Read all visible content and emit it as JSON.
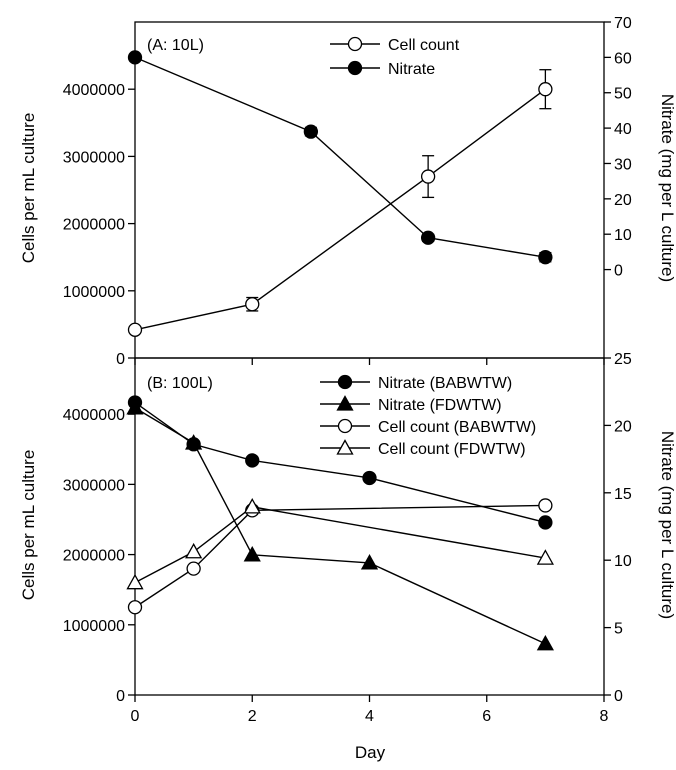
{
  "chart_data": [
    {
      "type": "line",
      "panel_label": "(A: 10L)",
      "xlabel": "",
      "ylabel_left": "Cells per mL culture",
      "ylabel_right": "Nitrate (mg per L culture)",
      "xlim": [
        0,
        8
      ],
      "ylim_left": [
        0,
        5000000
      ],
      "ylim_right": [
        -25,
        70
      ],
      "yticks_left": [
        "0",
        "1000000",
        "2000000",
        "3000000",
        "4000000"
      ],
      "yticks_right": [
        "0",
        "10",
        "20",
        "30",
        "40",
        "50",
        "60",
        "70"
      ],
      "legend_position": "top-center",
      "series": [
        {
          "name": "Cell count",
          "axis": "left",
          "marker": "circle-open",
          "x": [
            0,
            2,
            5,
            7
          ],
          "y": [
            420000,
            800000,
            2700000,
            4000000
          ],
          "error": [
            0,
            100000,
            310000,
            290000
          ]
        },
        {
          "name": "Nitrate",
          "axis": "right",
          "marker": "circle-filled",
          "x": [
            0,
            3,
            5,
            7
          ],
          "y": [
            60,
            39,
            9,
            3.5
          ],
          "error": [
            0,
            1.2,
            1.0,
            1.3
          ]
        }
      ]
    },
    {
      "type": "line",
      "panel_label": "(B: 100L)",
      "xlabel": "Day",
      "ylabel_left": "Cells per mL culture",
      "ylabel_right": "Nitrate (mg per L culture)",
      "xlim": [
        0,
        8
      ],
      "ylim_left": [
        0,
        4800000
      ],
      "ylim_right": [
        0,
        25
      ],
      "xticks": [
        "0",
        "2",
        "4",
        "6",
        "8"
      ],
      "yticks_left": [
        "0",
        "1000000",
        "2000000",
        "3000000",
        "4000000"
      ],
      "yticks_right": [
        "0",
        "5",
        "10",
        "15",
        "20",
        "25"
      ],
      "legend_position": "top-right",
      "series": [
        {
          "name": "Nitrate (BABWTW)",
          "axis": "right",
          "marker": "circle-filled",
          "x": [
            0,
            1,
            2,
            4,
            7
          ],
          "y": [
            21.7,
            18.6,
            17.4,
            16.1,
            12.8
          ]
        },
        {
          "name": "Nitrate (FDWTW)",
          "axis": "right",
          "marker": "triangle-filled",
          "x": [
            0,
            1,
            2,
            4,
            7
          ],
          "y": [
            21.3,
            18.7,
            10.4,
            9.8,
            3.8
          ]
        },
        {
          "name": "Cell count (BABWTW)",
          "axis": "left",
          "marker": "circle-open",
          "x": [
            0,
            1,
            2,
            7
          ],
          "y": [
            1250000,
            1800000,
            2630000,
            2700000
          ]
        },
        {
          "name": "Cell count (FDWTW)",
          "axis": "left",
          "marker": "triangle-open",
          "x": [
            0,
            1,
            2,
            7
          ],
          "y": [
            1600000,
            2040000,
            2680000,
            1950000
          ]
        }
      ]
    }
  ]
}
